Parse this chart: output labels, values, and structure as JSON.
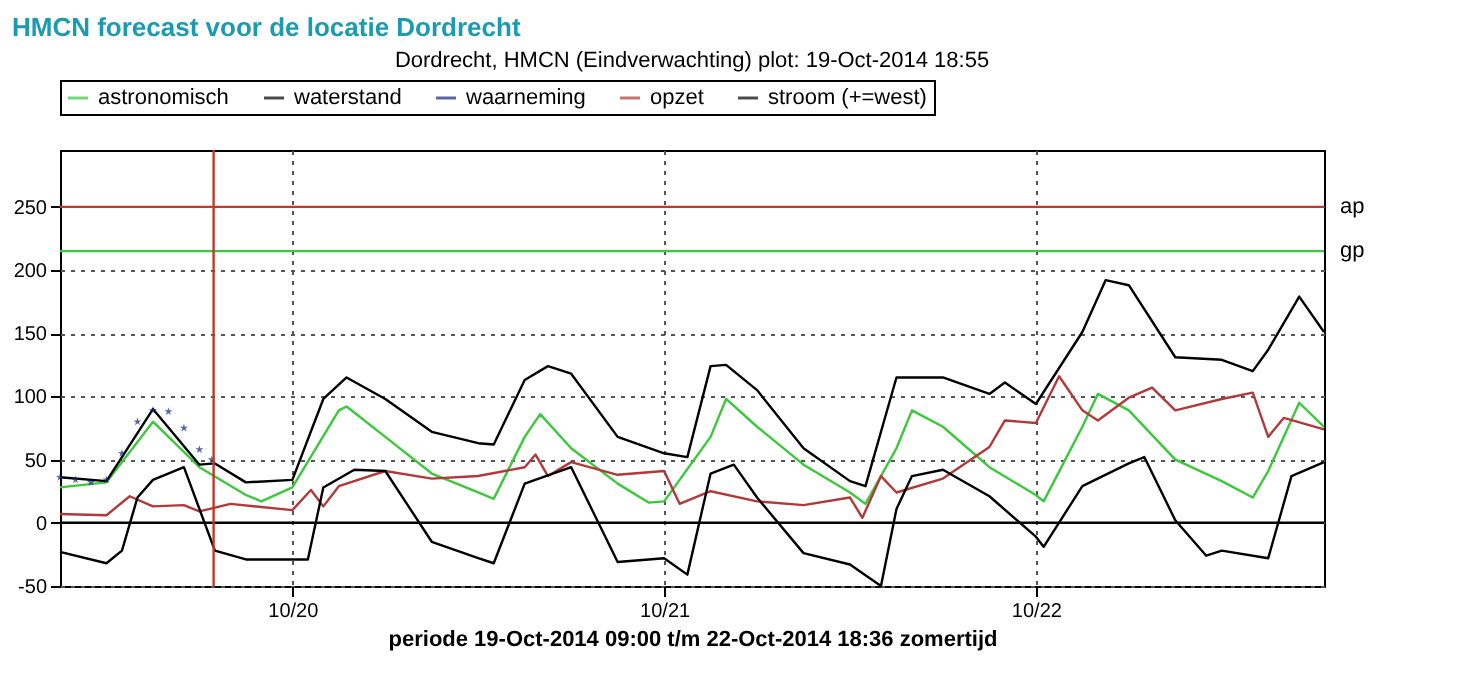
{
  "chart_data": {
    "type": "line",
    "title": "HMCN forecast voor de locatie Dordrecht",
    "subtitle": "Dordrecht, HMCN (Eindverwachting) plot: 19-Oct-2014 18:55",
    "xlabel": "periode 19-Oct-2014 09:00 t/m 22-Oct-2014 18:36 zomertijd",
    "xlim": [
      "2014-10-19T09:00",
      "2014-10-22T18:36"
    ],
    "xticks": [
      {
        "value": "2014-10-20T00:00",
        "label": "10/20"
      },
      {
        "value": "2014-10-21T00:00",
        "label": "10/21"
      },
      {
        "value": "2014-10-22T00:00",
        "label": "10/22"
      }
    ],
    "ylim": [
      -50,
      295
    ],
    "yticks": [
      -50,
      0,
      50,
      100,
      150,
      200,
      250
    ],
    "grid": true,
    "legend": "top",
    "line_style": "solid",
    "ref_lines": [
      {
        "axis": "y",
        "value": 250,
        "label": "ap",
        "color": "#c0392b"
      },
      {
        "axis": "y",
        "value": 215,
        "label": "gp",
        "color": "#3cc83c"
      },
      {
        "axis": "y",
        "value": 0,
        "label": null,
        "color": "#000000"
      },
      {
        "axis": "x",
        "value": "2014-10-19T18:55",
        "label": null,
        "color": "#c0392b"
      }
    ],
    "series": [
      {
        "name": "astronomisch",
        "color": "#3cc83c",
        "type": "line",
        "x": [
          "2014-10-19T09:00",
          "2014-10-19T12:00",
          "2014-10-19T15:00",
          "2014-10-19T18:00",
          "2014-10-19T21:00",
          "2014-10-19T22:00",
          "2014-10-20T00:00",
          "2014-10-20T03:00",
          "2014-10-20T03:30",
          "2014-10-20T06:00",
          "2014-10-20T09:00",
          "2014-10-20T12:00",
          "2014-10-20T13:00",
          "2014-10-20T15:00",
          "2014-10-20T16:00",
          "2014-10-20T18:00",
          "2014-10-20T21:00",
          "2014-10-20T23:00",
          "2014-10-21T00:00",
          "2014-10-21T03:00",
          "2014-10-21T04:00",
          "2014-10-21T06:00",
          "2014-10-21T09:00",
          "2014-10-21T12:00",
          "2014-10-21T13:00",
          "2014-10-21T15:00",
          "2014-10-21T16:00",
          "2014-10-21T18:00",
          "2014-10-21T21:00",
          "2014-10-22T00:00",
          "2014-10-22T00:30",
          "2014-10-22T03:00",
          "2014-10-22T04:00",
          "2014-10-22T06:00",
          "2014-10-22T09:00",
          "2014-10-22T12:00",
          "2014-10-22T14:00",
          "2014-10-22T15:00",
          "2014-10-22T17:00",
          "2014-10-22T18:36"
        ],
        "values": [
          28,
          32,
          80,
          44,
          22,
          17,
          28,
          89,
          92,
          68,
          39,
          24,
          19,
          68,
          86,
          59,
          31,
          16,
          17,
          68,
          98,
          76,
          46,
          24,
          15,
          59,
          89,
          76,
          44,
          22,
          17,
          76,
          102,
          89,
          50,
          33,
          20,
          41,
          95,
          76
        ]
      },
      {
        "name": "waterstand",
        "color": "#000000",
        "type": "line",
        "x": [
          "2014-10-19T09:00",
          "2014-10-19T12:00",
          "2014-10-19T15:00",
          "2014-10-19T18:00",
          "2014-10-19T19:00",
          "2014-10-19T21:00",
          "2014-10-20T00:00",
          "2014-10-20T02:00",
          "2014-10-20T03:30",
          "2014-10-20T06:00",
          "2014-10-20T09:00",
          "2014-10-20T12:00",
          "2014-10-20T13:00",
          "2014-10-20T15:00",
          "2014-10-20T16:30",
          "2014-10-20T18:00",
          "2014-10-20T21:00",
          "2014-10-21T00:00",
          "2014-10-21T01:30",
          "2014-10-21T03:00",
          "2014-10-21T04:00",
          "2014-10-21T06:00",
          "2014-10-21T09:00",
          "2014-10-21T12:00",
          "2014-10-21T13:00",
          "2014-10-21T15:00",
          "2014-10-21T18:00",
          "2014-10-21T21:00",
          "2014-10-21T22:00",
          "2014-10-22T00:00",
          "2014-10-22T03:00",
          "2014-10-22T04:30",
          "2014-10-22T06:00",
          "2014-10-22T09:00",
          "2014-10-22T12:00",
          "2014-10-22T14:00",
          "2014-10-22T15:00",
          "2014-10-22T17:00",
          "2014-10-22T18:36"
        ],
        "values": [
          36,
          33,
          90,
          46,
          47,
          32,
          34,
          98,
          115,
          98,
          72,
          63,
          62,
          113,
          124,
          118,
          68,
          55,
          52,
          124,
          125,
          105,
          59,
          33,
          29,
          115,
          115,
          102,
          111,
          94,
          151,
          192,
          188,
          131,
          129,
          120,
          137,
          179,
          151
        ]
      },
      {
        "name": "waarneming",
        "color": "#1a237e",
        "type": "scatter",
        "marker": "star",
        "x": [
          "2014-10-19T09:00",
          "2014-10-19T10:00",
          "2014-10-19T11:00",
          "2014-10-19T12:00",
          "2014-10-19T13:00",
          "2014-10-19T14:00",
          "2014-10-19T15:00",
          "2014-10-19T16:00",
          "2014-10-19T17:00",
          "2014-10-19T18:00",
          "2014-10-19T18:48"
        ],
        "values": [
          36,
          34,
          32,
          34,
          55,
          80,
          89,
          88,
          75,
          58,
          50
        ]
      },
      {
        "name": "opzet",
        "color": "#b03a3a",
        "type": "line",
        "x": [
          "2014-10-19T09:00",
          "2014-10-19T12:00",
          "2014-10-19T13:30",
          "2014-10-19T15:00",
          "2014-10-19T17:00",
          "2014-10-19T18:00",
          "2014-10-19T20:00",
          "2014-10-20T00:00",
          "2014-10-20T01:12",
          "2014-10-20T02:00",
          "2014-10-20T03:00",
          "2014-10-20T06:00",
          "2014-10-20T09:00",
          "2014-10-20T12:00",
          "2014-10-20T15:00",
          "2014-10-20T15:42",
          "2014-10-20T16:30",
          "2014-10-20T18:00",
          "2014-10-20T21:00",
          "2014-10-21T00:00",
          "2014-10-21T01:00",
          "2014-10-21T03:00",
          "2014-10-21T06:00",
          "2014-10-21T09:00",
          "2014-10-21T12:00",
          "2014-10-21T12:48",
          "2014-10-21T14:00",
          "2014-10-21T15:00",
          "2014-10-21T18:00",
          "2014-10-21T21:00",
          "2014-10-21T22:00",
          "2014-10-22T00:00",
          "2014-10-22T01:30",
          "2014-10-22T03:00",
          "2014-10-22T04:00",
          "2014-10-22T06:00",
          "2014-10-22T07:30",
          "2014-10-22T09:00",
          "2014-10-22T12:00",
          "2014-10-22T14:00",
          "2014-10-22T15:00",
          "2014-10-22T16:00",
          "2014-10-22T18:36"
        ],
        "values": [
          7,
          6,
          21,
          13,
          14,
          9,
          15,
          10,
          26,
          13,
          29,
          41,
          35,
          37,
          44,
          54,
          37,
          48,
          38,
          41,
          15,
          25,
          17,
          14,
          20,
          4,
          37,
          24,
          35,
          60,
          81,
          79,
          116,
          89,
          81,
          99,
          107,
          89,
          98,
          103,
          68,
          83,
          74
        ]
      },
      {
        "name": "stroom (+=west)",
        "color": "#000000",
        "type": "line",
        "x": [
          "2014-10-19T09:00",
          "2014-10-19T12:00",
          "2014-10-19T13:00",
          "2014-10-19T14:00",
          "2014-10-19T15:00",
          "2014-10-19T17:00",
          "2014-10-19T19:00",
          "2014-10-19T21:00",
          "2014-10-20T00:00",
          "2014-10-20T01:00",
          "2014-10-20T02:00",
          "2014-10-20T04:00",
          "2014-10-20T06:00",
          "2014-10-20T09:00",
          "2014-10-20T12:00",
          "2014-10-20T13:00",
          "2014-10-20T15:00",
          "2014-10-20T18:00",
          "2014-10-20T21:00",
          "2014-10-21T00:00",
          "2014-10-21T01:30",
          "2014-10-21T03:00",
          "2014-10-21T04:30",
          "2014-10-21T06:00",
          "2014-10-21T09:00",
          "2014-10-21T12:00",
          "2014-10-21T14:00",
          "2014-10-21T15:00",
          "2014-10-21T16:00",
          "2014-10-21T18:00",
          "2014-10-21T21:00",
          "2014-10-22T00:00",
          "2014-10-22T00:30",
          "2014-10-22T03:00",
          "2014-10-22T06:00",
          "2014-10-22T07:00",
          "2014-10-22T09:00",
          "2014-10-22T11:00",
          "2014-10-22T12:00",
          "2014-10-22T15:00",
          "2014-10-22T16:30",
          "2014-10-22T18:36"
        ],
        "values": [
          -23,
          -32,
          -22,
          20,
          34,
          44,
          -22,
          -29,
          -29,
          -29,
          28,
          42,
          41,
          -15,
          -28,
          -32,
          31,
          44,
          -31,
          -28,
          -41,
          39,
          46,
          20,
          -24,
          -33,
          -50,
          11,
          37,
          42,
          21,
          -11,
          -19,
          29,
          47,
          52,
          2,
          -26,
          -22,
          -28,
          37,
          48
        ]
      }
    ]
  }
}
